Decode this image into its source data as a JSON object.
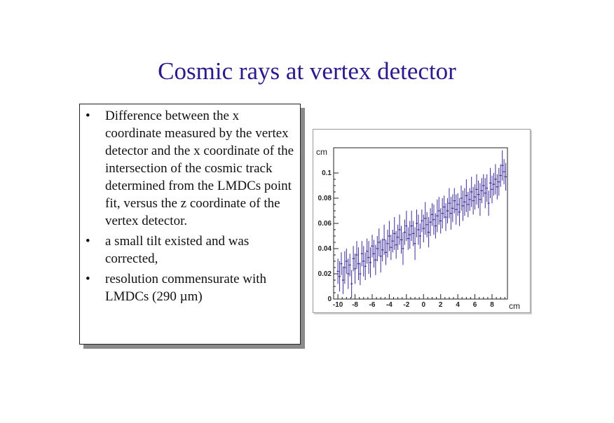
{
  "slide": {
    "title": "Cosmic rays at vertex detector",
    "bullets": [
      "Difference between the x coordinate measured by the vertex detector and the x coordinate of the intersection of the cosmic track determined from the LMDCs point fit, versus the z coordinate of the vertex detector.",
      "a small tilt existed and was corrected,",
      "resolution commensurate with LMDCs (290 µm)"
    ],
    "bullet_symbol": "•"
  },
  "chart_data": {
    "type": "scatter",
    "title": "",
    "xlabel": "cm",
    "ylabel": "cm",
    "xlim": [
      -10.5,
      9.8
    ],
    "ylim": [
      0,
      0.12
    ],
    "x_ticks": [
      -10,
      -8,
      -6,
      -4,
      -2,
      0,
      2,
      4,
      6,
      8
    ],
    "x_tick_labels": [
      "-10",
      "-8",
      "-6",
      "-4",
      "-2",
      "0",
      "2",
      "4",
      "6",
      "8"
    ],
    "y_ticks": [
      0,
      0.02,
      0.04,
      0.06,
      0.08,
      0.1
    ],
    "y_tick_labels": [
      "0",
      "0.02",
      "0.04",
      "0.06",
      "0.08",
      "0.1"
    ],
    "grid": false,
    "marker_color": "#3a2a9a",
    "series": [
      {
        "x": [
          -10.0,
          -9.8,
          -9.6,
          -9.4,
          -9.2,
          -9.0,
          -8.8,
          -8.6,
          -8.4,
          -8.2,
          -8.0,
          -7.8,
          -7.6,
          -7.4,
          -7.2,
          -7.0,
          -6.8,
          -6.6,
          -6.4,
          -6.2,
          -6.0,
          -5.8,
          -5.6,
          -5.4,
          -5.2,
          -5.0,
          -4.8,
          -4.6,
          -4.4,
          -4.2,
          -4.0,
          -3.8,
          -3.6,
          -3.4,
          -3.2,
          -3.0,
          -2.8,
          -2.6,
          -2.4,
          -2.2,
          -2.0,
          -1.8,
          -1.6,
          -1.4,
          -1.2,
          -1.0,
          -0.8,
          -0.6,
          -0.4,
          -0.2,
          0.0,
          0.2,
          0.4,
          0.6,
          0.8,
          1.0,
          1.2,
          1.4,
          1.6,
          1.8,
          2.0,
          2.2,
          2.4,
          2.6,
          2.8,
          3.0,
          3.2,
          3.4,
          3.6,
          3.8,
          4.0,
          4.2,
          4.4,
          4.6,
          4.8,
          5.0,
          5.2,
          5.4,
          5.6,
          5.8,
          6.0,
          6.2,
          6.4,
          6.6,
          6.8,
          7.0,
          7.2,
          7.4,
          7.6,
          7.8,
          8.0,
          8.2,
          8.4,
          8.6,
          8.8,
          9.0,
          9.2,
          9.4,
          9.6
        ],
        "y": [
          0.022,
          0.018,
          0.028,
          0.015,
          0.025,
          0.03,
          0.02,
          0.027,
          0.012,
          0.032,
          0.024,
          0.035,
          0.028,
          0.02,
          0.036,
          0.03,
          0.026,
          0.038,
          0.033,
          0.029,
          0.042,
          0.036,
          0.031,
          0.04,
          0.045,
          0.034,
          0.039,
          0.047,
          0.037,
          0.044,
          0.05,
          0.041,
          0.046,
          0.052,
          0.043,
          0.049,
          0.055,
          0.047,
          0.04,
          0.053,
          0.058,
          0.048,
          0.051,
          0.058,
          0.052,
          0.044,
          0.06,
          0.055,
          0.05,
          0.062,
          0.056,
          0.064,
          0.059,
          0.053,
          0.061,
          0.067,
          0.063,
          0.058,
          0.066,
          0.07,
          0.062,
          0.068,
          0.073,
          0.065,
          0.07,
          0.076,
          0.068,
          0.072,
          0.078,
          0.071,
          0.075,
          0.069,
          0.08,
          0.074,
          0.077,
          0.082,
          0.075,
          0.079,
          0.085,
          0.078,
          0.081,
          0.087,
          0.083,
          0.079,
          0.086,
          0.09,
          0.084,
          0.088,
          0.076,
          0.092,
          0.087,
          0.091,
          0.095,
          0.089,
          0.093,
          0.098,
          0.106,
          0.101,
          0.097
        ],
        "yerr": [
          0.01,
          0.012,
          0.009,
          0.011,
          0.013,
          0.01,
          0.012,
          0.009,
          0.011,
          0.01,
          0.012,
          0.011,
          0.013,
          0.009,
          0.01,
          0.012,
          0.011,
          0.01,
          0.013,
          0.012,
          0.009,
          0.011,
          0.012,
          0.01,
          0.011,
          0.013,
          0.009,
          0.012,
          0.01,
          0.011,
          0.012,
          0.01,
          0.009,
          0.013,
          0.011,
          0.01,
          0.012,
          0.011,
          0.013,
          0.01,
          0.012,
          0.009,
          0.011,
          0.012,
          0.01,
          0.013,
          0.011,
          0.012,
          0.01,
          0.009,
          0.011,
          0.013,
          0.01,
          0.012,
          0.011,
          0.009,
          0.012,
          0.01,
          0.013,
          0.011,
          0.01,
          0.012,
          0.009,
          0.011,
          0.01,
          0.012,
          0.013,
          0.011,
          0.01,
          0.012,
          0.009,
          0.011,
          0.01,
          0.012,
          0.011,
          0.013,
          0.01,
          0.009,
          0.012,
          0.011,
          0.01,
          0.012,
          0.011,
          0.013,
          0.01,
          0.009,
          0.012,
          0.011,
          0.01,
          0.012,
          0.011,
          0.009,
          0.012,
          0.01,
          0.011,
          0.009,
          0.012,
          0.01,
          0.011
        ]
      }
    ]
  }
}
